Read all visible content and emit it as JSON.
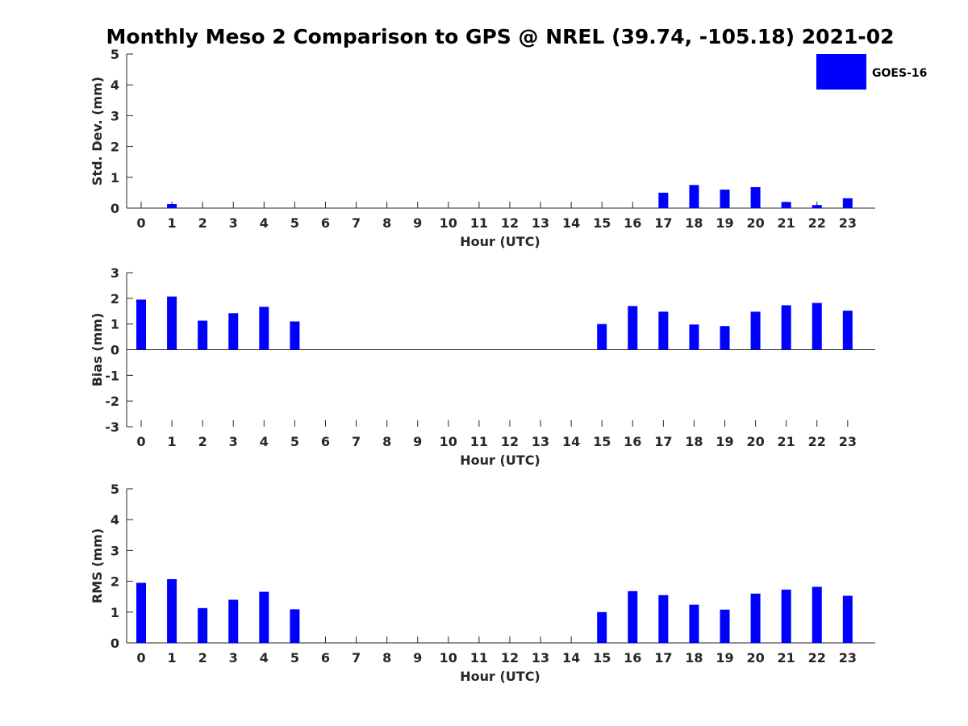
{
  "title": "Monthly Meso 2 Comparison to GPS @ NREL (39.74, -105.18) 2021-02",
  "legend": {
    "label": "GOES-16",
    "color": "#0000ff",
    "placement": "top-right"
  },
  "chart_data": [
    {
      "type": "bar",
      "name": "std-dev",
      "categories": [
        "0",
        "1",
        "2",
        "3",
        "4",
        "5",
        "6",
        "7",
        "8",
        "9",
        "10",
        "11",
        "12",
        "13",
        "14",
        "15",
        "16",
        "17",
        "18",
        "19",
        "20",
        "21",
        "22",
        "23"
      ],
      "series": [
        {
          "values": [
            0,
            0.13,
            0,
            0,
            0,
            0,
            0,
            0,
            0,
            0,
            0,
            0,
            0,
            0,
            0,
            0,
            0,
            0.5,
            0.75,
            0.6,
            0.68,
            0.2,
            0.1,
            0.32
          ]
        }
      ],
      "xlabel": "Hour (UTC)",
      "ylabel": "Std. Dev. (mm)",
      "ylim": [
        0,
        5
      ],
      "yticks": [
        "0",
        "1",
        "2",
        "3",
        "4",
        "5"
      ],
      "grid": false
    },
    {
      "type": "bar",
      "name": "bias",
      "categories": [
        "0",
        "1",
        "2",
        "3",
        "4",
        "5",
        "6",
        "7",
        "8",
        "9",
        "10",
        "11",
        "12",
        "13",
        "14",
        "15",
        "16",
        "17",
        "18",
        "19",
        "20",
        "21",
        "22",
        "23"
      ],
      "series": [
        {
          "values": [
            1.95,
            2.07,
            1.13,
            1.42,
            1.67,
            1.1,
            0,
            0,
            0,
            0,
            0,
            0,
            0,
            0,
            0,
            1.0,
            1.7,
            1.48,
            0.98,
            0.92,
            1.48,
            1.73,
            1.82,
            1.52
          ]
        }
      ],
      "xlabel": "Hour (UTC)",
      "ylabel": "Bias (mm)",
      "ylim": [
        -3,
        3
      ],
      "yticks": [
        "-3",
        "-2",
        "-1",
        "0",
        "1",
        "2",
        "3"
      ],
      "grid": false
    },
    {
      "type": "bar",
      "name": "rms",
      "categories": [
        "0",
        "1",
        "2",
        "3",
        "4",
        "5",
        "6",
        "7",
        "8",
        "9",
        "10",
        "11",
        "12",
        "13",
        "14",
        "15",
        "16",
        "17",
        "18",
        "19",
        "20",
        "21",
        "22",
        "23"
      ],
      "series": [
        {
          "values": [
            1.95,
            2.07,
            1.13,
            1.4,
            1.66,
            1.09,
            0,
            0,
            0,
            0,
            0,
            0,
            0,
            0,
            0,
            1.0,
            1.68,
            1.55,
            1.24,
            1.08,
            1.6,
            1.73,
            1.82,
            1.53
          ]
        }
      ],
      "xlabel": "Hour (UTC)",
      "ylabel": "RMS (mm)",
      "ylim": [
        0,
        5
      ],
      "yticks": [
        "0",
        "1",
        "2",
        "3",
        "4",
        "5"
      ],
      "grid": false
    }
  ]
}
